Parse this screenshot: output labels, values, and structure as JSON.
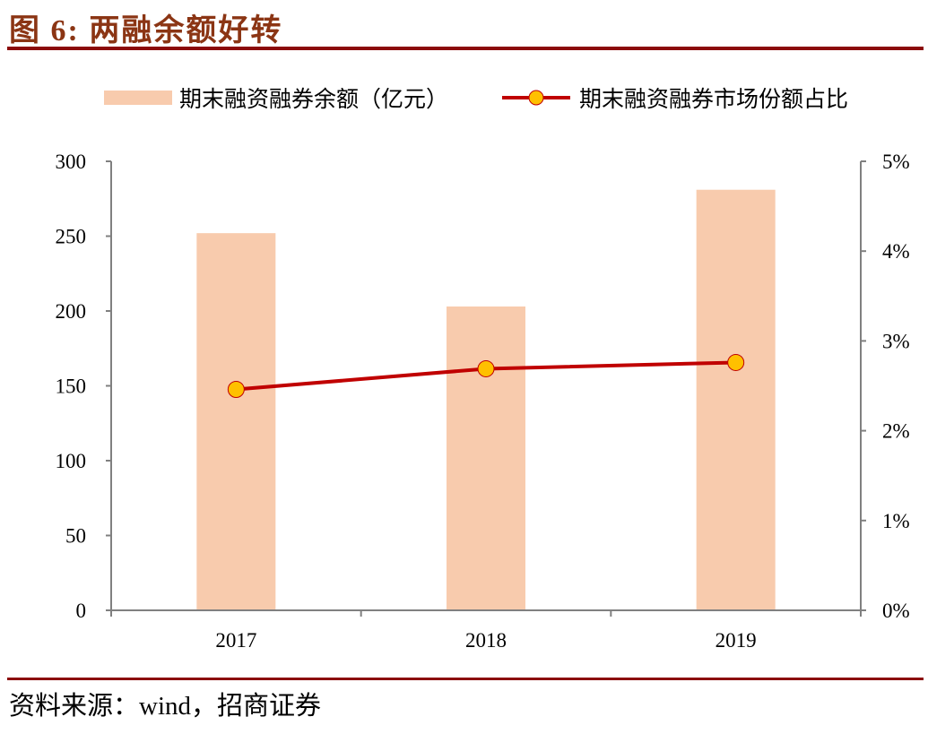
{
  "title": "图 6:  两融余额好转",
  "source": "资料来源：wind，招商证券",
  "chart_data": {
    "type": "bar+line",
    "categories": [
      "2017",
      "2018",
      "2019"
    ],
    "series": [
      {
        "name": "期末融资融券余额（亿元）",
        "type": "bar",
        "axis": "left",
        "color": "#F8CBAD",
        "values": [
          252,
          203,
          281
        ]
      },
      {
        "name": "期末融资融券市场份额占比",
        "type": "line",
        "axis": "right",
        "color": "#C00000",
        "marker_color": "#FFC000",
        "values": [
          2.46,
          2.69,
          2.76
        ]
      }
    ],
    "left_axis": {
      "ylim": [
        0,
        300
      ],
      "ticks": [
        "0",
        "50",
        "100",
        "150",
        "200",
        "250",
        "300"
      ]
    },
    "right_axis": {
      "ylim": [
        0,
        5
      ],
      "unit": "%",
      "ticks": [
        "0%",
        "1%",
        "2%",
        "3%",
        "4%",
        "5%"
      ]
    },
    "grid": false,
    "legend": "top"
  }
}
